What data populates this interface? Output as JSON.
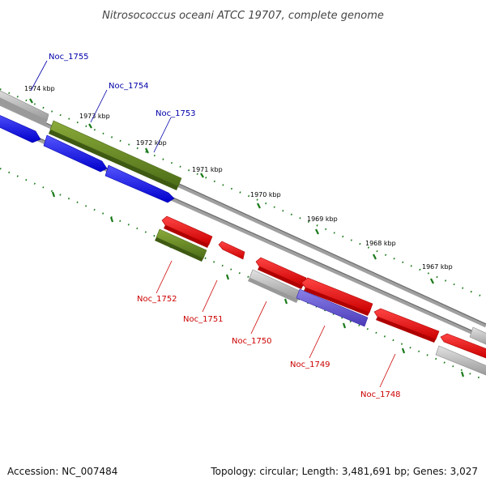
{
  "title": "Nitrosococcus oceani ATCC 19707, complete genome",
  "footer": {
    "accession": "Accession: NC_007484",
    "summary": "Topology: circular; Length: 3,481,691 bp; Genes: 3,027"
  },
  "kbp_labels": [
    "1974 kbp",
    "1973 kbp",
    "1972 kbp",
    "1971 kbp",
    "1970 kbp",
    "1969 kbp",
    "1968 kbp",
    "1967 kbp"
  ],
  "genes": {
    "top": [
      "Noc_1755",
      "Noc_1754",
      "Noc_1753"
    ],
    "bottom": [
      "Noc_1752",
      "Noc_1751",
      "Noc_1750",
      "Noc_1749",
      "Noc_1748"
    ]
  },
  "colors": {
    "forward_label": "#0000aa",
    "reverse_label": "#cc0000",
    "blue": "#0000ff",
    "olive": "#6b8e23",
    "red": "#ff0000",
    "grey": "#b8b8b8",
    "lavender": "#6a5acd",
    "backbone": "#808080",
    "ticks": "#1a7a1a"
  }
}
